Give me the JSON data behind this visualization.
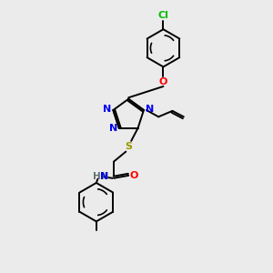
{
  "bg_color": "#ebebeb",
  "atom_colors": {
    "N": "#0000ee",
    "O": "#ff0000",
    "S": "#999900",
    "Cl": "#00bb00",
    "C": "#000000",
    "H": "#607070"
  },
  "bond_color": "#000000",
  "bond_width": 1.4
}
